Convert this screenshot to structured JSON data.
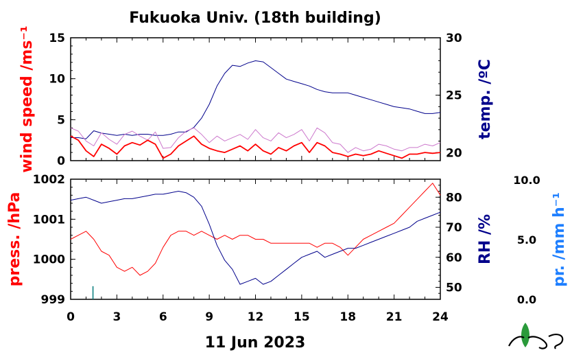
{
  "title": "Fukuoka Univ. (18th building)",
  "date_label": "11 Jun 2023",
  "colors": {
    "wind": "#ff0000",
    "wind_gust": "#cc77cc",
    "temp": "#00008b",
    "press": "#ff0000",
    "rh": "#00008b",
    "precip": "#1e7fff",
    "frame": "#000000",
    "logo_green": "#2a9a3a"
  },
  "chart_data": [
    {
      "type": "line",
      "panel": "top",
      "xlabel": "",
      "left_axis": {
        "label": "wind speed /ms⁻¹",
        "ylim": [
          0,
          15
        ],
        "ticks": [
          "0",
          "5",
          "10",
          "15"
        ]
      },
      "right_axis": {
        "label": "temp. /ºC",
        "ylim": [
          19.3,
          30
        ],
        "ticks": [
          "20",
          "25",
          "30"
        ]
      },
      "xlim": [
        0,
        24
      ],
      "x_ticks": [
        "0",
        "3",
        "6",
        "9",
        "12",
        "15",
        "18",
        "21",
        "24"
      ],
      "series": [
        {
          "role": "temp",
          "axis": "right",
          "x": [
            0,
            0.5,
            1,
            1.5,
            2,
            2.5,
            3,
            3.5,
            4,
            4.5,
            5,
            5.5,
            6,
            6.5,
            7,
            7.5,
            8,
            8.5,
            9,
            9.5,
            10,
            10.5,
            11,
            11.5,
            12,
            12.5,
            13,
            13.5,
            14,
            14.5,
            15,
            15.5,
            16,
            16.5,
            17,
            17.5,
            18,
            18.5,
            19,
            19.5,
            20,
            20.5,
            21,
            21.5,
            22,
            22.5,
            23,
            23.5,
            24
          ],
          "values": [
            21.3,
            21.3,
            21.2,
            21.9,
            21.7,
            21.6,
            21.5,
            21.6,
            21.5,
            21.6,
            21.6,
            21.5,
            21.5,
            21.6,
            21.8,
            21.8,
            22.2,
            23.0,
            24.2,
            25.8,
            26.9,
            27.6,
            27.5,
            27.8,
            28.0,
            27.9,
            27.4,
            26.9,
            26.4,
            26.2,
            26.0,
            25.8,
            25.5,
            25.3,
            25.2,
            25.2,
            25.2,
            25.0,
            24.8,
            24.6,
            24.4,
            24.2,
            24.0,
            23.9,
            23.8,
            23.6,
            23.4,
            23.4,
            23.5
          ]
        },
        {
          "role": "wind_gust",
          "axis": "left",
          "x": [
            0,
            0.5,
            1,
            1.5,
            2,
            2.5,
            3,
            3.5,
            4,
            4.5,
            5,
            5.5,
            6,
            6.5,
            7,
            7.5,
            8,
            8.5,
            9,
            9.5,
            10,
            10.5,
            11,
            11.5,
            12,
            12.5,
            13,
            13.5,
            14,
            14.5,
            15,
            15.5,
            16,
            16.5,
            17,
            17.5,
            18,
            18.5,
            19,
            19.5,
            20,
            20.5,
            21,
            21.5,
            22,
            22.5,
            23,
            23.5,
            24
          ],
          "values": [
            4.0,
            3.6,
            2.4,
            1.8,
            3.4,
            2.6,
            2.0,
            3.2,
            3.6,
            3.0,
            2.5,
            3.5,
            1.5,
            1.6,
            2.8,
            3.6,
            4.0,
            3.2,
            2.2,
            3.0,
            2.4,
            2.8,
            3.2,
            2.6,
            3.8,
            2.8,
            2.4,
            3.4,
            2.8,
            3.2,
            3.8,
            2.4,
            4.0,
            3.4,
            2.2,
            2.0,
            1.0,
            1.6,
            1.2,
            1.4,
            2.0,
            1.8,
            1.4,
            1.2,
            1.6,
            1.6,
            2.0,
            1.8,
            2.2
          ]
        },
        {
          "role": "wind",
          "axis": "left",
          "x": [
            0,
            0.5,
            1,
            1.5,
            2,
            2.5,
            3,
            3.5,
            4,
            4.5,
            5,
            5.5,
            6,
            6.5,
            7,
            7.5,
            8,
            8.5,
            9,
            9.5,
            10,
            10.5,
            11,
            11.5,
            12,
            12.5,
            13,
            13.5,
            14,
            14.5,
            15,
            15.5,
            16,
            16.5,
            17,
            17.5,
            18,
            18.5,
            19,
            19.5,
            20,
            20.5,
            21,
            21.5,
            22,
            22.5,
            23,
            23.5,
            24
          ],
          "values": [
            3.0,
            2.5,
            1.2,
            0.5,
            2.0,
            1.5,
            0.8,
            1.8,
            2.2,
            1.9,
            2.5,
            2.0,
            0.3,
            0.8,
            1.8,
            2.4,
            3.0,
            2.0,
            1.5,
            1.2,
            1.0,
            1.4,
            1.8,
            1.2,
            2.0,
            1.2,
            0.8,
            1.6,
            1.2,
            1.8,
            2.2,
            1.0,
            2.2,
            1.8,
            1.0,
            0.8,
            0.5,
            0.8,
            0.6,
            0.8,
            1.2,
            0.9,
            0.6,
            0.3,
            0.8,
            0.8,
            1.0,
            0.9,
            1.0
          ]
        }
      ]
    },
    {
      "type": "line",
      "panel": "bottom",
      "xlabel": "11 Jun 2023",
      "left_axis": {
        "label": "press. /hPa",
        "ylim": [
          999,
          1002
        ],
        "ticks": [
          "999",
          "1000",
          "1001",
          "1002"
        ]
      },
      "right_axis": {
        "label": "RH /%",
        "ylim": [
          46,
          86
        ],
        "ticks": [
          "50",
          "60",
          "70",
          "80"
        ]
      },
      "precip_axis": {
        "label": "pr. /mm h⁻¹",
        "ylim": [
          0,
          10
        ],
        "ticks": [
          "0.0",
          "5.0",
          "10.0"
        ]
      },
      "xlim": [
        0,
        24
      ],
      "x_ticks": [
        "0",
        "3",
        "6",
        "9",
        "12",
        "15",
        "18",
        "21",
        "24"
      ],
      "series": [
        {
          "role": "press",
          "axis": "left",
          "x": [
            0,
            0.5,
            1,
            1.5,
            2,
            2.5,
            3,
            3.5,
            4,
            4.5,
            5,
            5.5,
            6,
            6.5,
            7,
            7.5,
            8,
            8.5,
            9,
            9.5,
            10,
            10.5,
            11,
            11.5,
            12,
            12.5,
            13,
            13.5,
            14,
            14.5,
            15,
            15.5,
            16,
            16.5,
            17,
            17.5,
            18,
            18.5,
            19,
            19.5,
            20,
            20.5,
            21,
            21.5,
            22,
            22.5,
            23,
            23.5,
            24
          ],
          "values": [
            1000.5,
            1000.6,
            1000.7,
            1000.5,
            1000.2,
            1000.1,
            999.8,
            999.7,
            999.8,
            999.6,
            999.7,
            999.9,
            1000.3,
            1000.6,
            1000.7,
            1000.7,
            1000.6,
            1000.7,
            1000.6,
            1000.5,
            1000.6,
            1000.5,
            1000.6,
            1000.6,
            1000.5,
            1000.5,
            1000.4,
            1000.4,
            1000.4,
            1000.4,
            1000.4,
            1000.4,
            1000.3,
            1000.4,
            1000.4,
            1000.3,
            1000.1,
            1000.3,
            1000.5,
            1000.6,
            1000.7,
            1000.8,
            1000.9,
            1001.1,
            1001.3,
            1001.5,
            1001.7,
            1001.9,
            1001.6
          ]
        },
        {
          "role": "rh",
          "axis": "right",
          "x": [
            0,
            0.5,
            1,
            1.5,
            2,
            2.5,
            3,
            3.5,
            4,
            4.5,
            5,
            5.5,
            6,
            6.5,
            7,
            7.5,
            8,
            8.5,
            9,
            9.5,
            10,
            10.5,
            11,
            11.5,
            12,
            12.5,
            13,
            13.5,
            14,
            14.5,
            15,
            15.5,
            16,
            16.5,
            17,
            17.5,
            18,
            18.5,
            19,
            19.5,
            20,
            20.5,
            21,
            21.5,
            22,
            22.5,
            23,
            23.5,
            24
          ],
          "values": [
            79,
            79.5,
            80,
            79,
            78,
            78.5,
            79,
            79.5,
            79.5,
            80,
            80.5,
            81,
            81,
            81.5,
            82,
            81.5,
            80,
            77,
            71,
            64,
            59,
            56,
            51,
            52,
            53,
            51,
            52,
            54,
            56,
            58,
            60,
            61,
            62,
            60,
            61,
            62,
            63,
            63,
            64,
            65,
            66,
            67,
            68,
            69,
            70,
            72,
            73,
            74,
            75
          ]
        },
        {
          "role": "precip",
          "axis": "precip",
          "x": [
            1.45
          ],
          "values": [
            1.1
          ]
        }
      ]
    }
  ]
}
